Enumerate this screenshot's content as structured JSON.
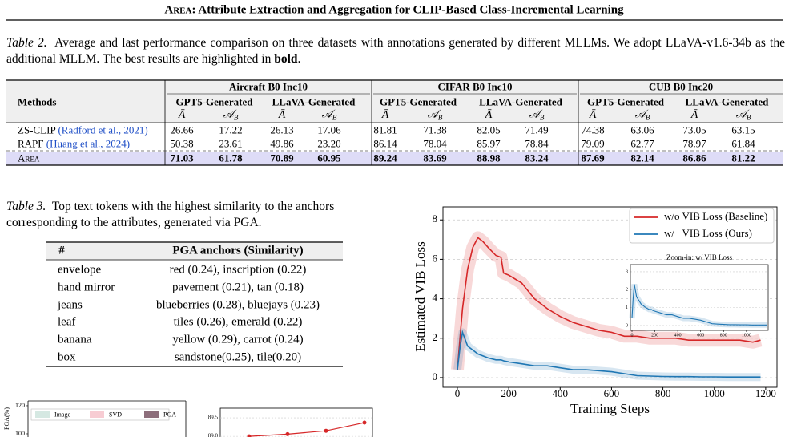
{
  "header": {
    "title_smallcaps": "Area",
    "title_rest": ": Attribute Extraction and Aggregation for CLIP-Based Class-Incremental Learning"
  },
  "table2": {
    "label": "Table 2.",
    "caption": "Average and last performance comparison on three datasets with annotations generated by different MLLMs. We adopt LLaVA-v1.6-34b as the additional MLLM. The best results are highlighted in",
    "caption_bold": "bold",
    "caption_end": ".",
    "methods_header": "Methods",
    "datasets": [
      "Aircraft B0 Inc10",
      "CIFAR B0 Inc10",
      "CUB B0 Inc20"
    ],
    "generators": [
      "GPT5-Generated",
      "LLaVA-Generated"
    ],
    "metrics": [
      {
        "main": "Ā",
        "sub": ""
      },
      {
        "main": "𝒜",
        "sub": "B"
      }
    ],
    "rows": [
      {
        "method": "ZS-CLIP",
        "cite": "(Radford et al., 2021)",
        "values": [
          "26.66",
          "17.22",
          "26.13",
          "17.06",
          "81.81",
          "71.38",
          "82.05",
          "71.49",
          "74.38",
          "63.06",
          "73.05",
          "63.15"
        ]
      },
      {
        "method": "RAPF",
        "cite": "(Huang et al., 2024)",
        "values": [
          "50.38",
          "23.61",
          "49.86",
          "23.20",
          "86.14",
          "78.04",
          "85.97",
          "78.84",
          "79.09",
          "62.77",
          "78.97",
          "61.84"
        ]
      },
      {
        "method": "Area",
        "highlight": true,
        "values": [
          "71.03",
          "61.78",
          "70.89",
          "60.95",
          "89.24",
          "83.69",
          "88.98",
          "83.24",
          "87.69",
          "82.14",
          "86.86",
          "81.22"
        ]
      }
    ]
  },
  "table3": {
    "label": "Table 3.",
    "caption": "Top text tokens with the highest similarity to the anchors corresponding to the attributes, generated via PGA.",
    "header": [
      "#",
      "PGA anchors (Similarity)"
    ],
    "rows": [
      [
        "envelope",
        "red (0.24), inscription (0.22)"
      ],
      [
        "hand mirror",
        "pavement (0.21), tan (0.18)"
      ],
      [
        "jeans",
        "blueberries (0.28), bluejays (0.23)"
      ],
      [
        "leaf",
        "tiles (0.26), emerald (0.22)"
      ],
      [
        "banana",
        "yellow (0.29), carrot (0.24)"
      ],
      [
        "box",
        "sandstone(0.25), tile(0.20)"
      ]
    ]
  },
  "figure_vib": {
    "type": "line",
    "xlabel": "Training Steps",
    "ylabel": "Estimated VIB Loss",
    "x": [
      0,
      10,
      20,
      40,
      60,
      80,
      100,
      120,
      150,
      170,
      180,
      200,
      250,
      300,
      350,
      400,
      450,
      500,
      550,
      600,
      650,
      700,
      750,
      800,
      850,
      900,
      950,
      1000,
      1050,
      1100,
      1150,
      1180
    ],
    "series": [
      {
        "name": "w/o VIB Loss (Baseline)",
        "color": "#d62728",
        "values": [
          0.4,
          2.0,
          3.5,
          5.5,
          6.6,
          7.1,
          6.9,
          6.6,
          6.2,
          6.1,
          5.3,
          5.2,
          4.8,
          4.0,
          3.5,
          3.1,
          2.8,
          2.6,
          2.4,
          2.3,
          2.1,
          2.1,
          2.0,
          2.0,
          2.0,
          1.9,
          1.9,
          1.9,
          1.9,
          1.9,
          1.8,
          1.9
        ]
      },
      {
        "name": "w/   VIB Loss (Ours)",
        "color": "#1f77b4",
        "values": [
          0.4,
          1.5,
          2.3,
          1.6,
          1.4,
          1.2,
          1.1,
          1.0,
          0.9,
          0.9,
          0.85,
          0.8,
          0.7,
          0.6,
          0.6,
          0.5,
          0.4,
          0.4,
          0.35,
          0.3,
          0.2,
          0.1,
          0.08,
          0.06,
          0.05,
          0.05,
          0.04,
          0.04,
          0.03,
          0.03,
          0.03,
          0.03
        ]
      }
    ],
    "xlim": [
      -56,
      1244
    ],
    "ylim": [
      -0.49,
      8.66
    ],
    "xticks": [
      0,
      200,
      400,
      600,
      800,
      1000,
      1200
    ],
    "yticks": [
      0,
      2,
      4,
      6,
      8
    ],
    "grid": true,
    "legend": "upper right",
    "inset": {
      "title": "Zoom-in: w/ VIB Loss",
      "xlim": [
        -14,
        1190
      ],
      "ylim": [
        -0.27,
        3.4
      ],
      "xticks": [
        0,
        200,
        400,
        600,
        800,
        1000
      ],
      "yticks": [
        0,
        1,
        2,
        3
      ]
    }
  },
  "figure_pga": {
    "ylabel": "PGA(%)",
    "ylim": [
      80,
      123.4
    ],
    "yticks": [
      100,
      120
    ],
    "legend": [
      {
        "name": "Image",
        "color": "#d5e8e2"
      },
      {
        "name": "SVD",
        "color": "#f7ccd3"
      },
      {
        "name": "PGA",
        "color": "#8d6e7b"
      }
    ]
  },
  "figure_acc": {
    "ylim": [
      88.7,
      89.76
    ],
    "yticks": [
      {
        "value": 89,
        "label": "89.0"
      },
      89.5
    ],
    "color": "#d62728",
    "values": [
      89.0,
      89.06,
      89.15,
      89.37
    ]
  }
}
